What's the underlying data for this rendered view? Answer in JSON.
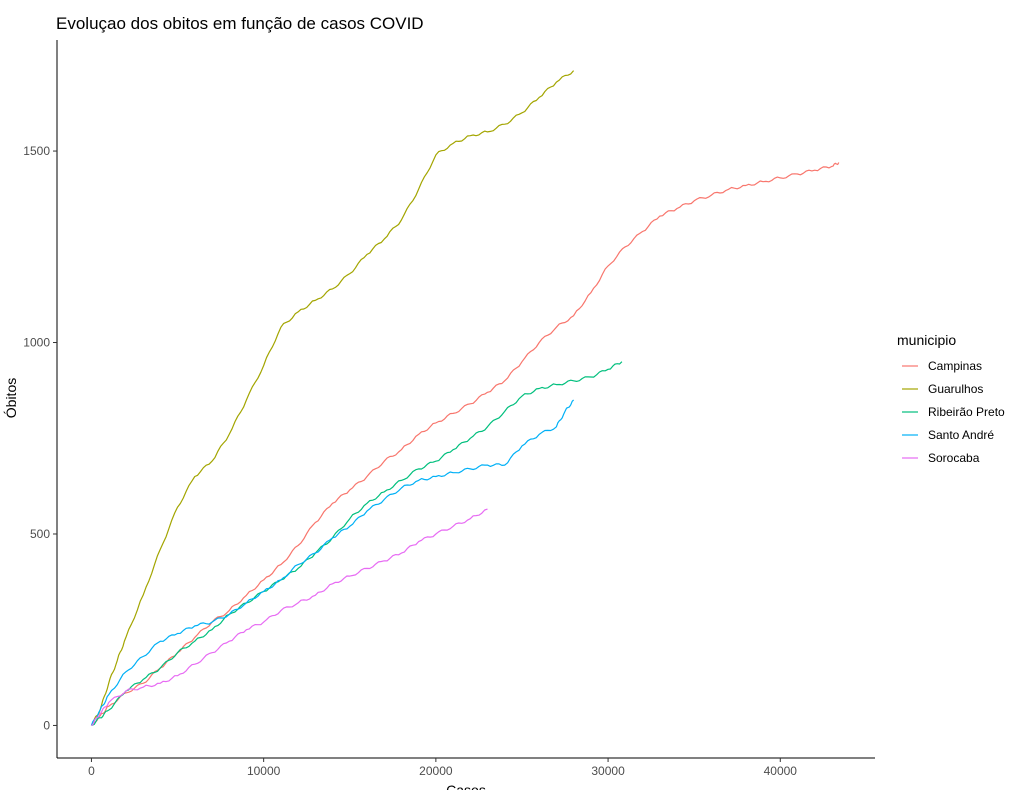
{
  "chart_data": {
    "type": "line",
    "title": "Evoluçao dos obitos em função de casos COVID",
    "xlabel": "Casos",
    "ylabel": "Óbitos",
    "xlim": [
      -2000,
      45500
    ],
    "ylim": [
      -85,
      1790
    ],
    "x_ticks": [
      0,
      10000,
      20000,
      30000,
      40000
    ],
    "y_ticks": [
      0,
      500,
      1000,
      1500
    ],
    "grid": false,
    "legend": {
      "title": "municipio",
      "position": "right"
    },
    "series": [
      {
        "name": "Campinas",
        "color": "#F8766D",
        "x": [
          0,
          500,
          1000,
          2000,
          3000,
          4000,
          5000,
          6000,
          7000,
          8000,
          9000,
          10000,
          11000,
          12000,
          13000,
          14000,
          15000,
          16000,
          17000,
          18000,
          19000,
          20000,
          21000,
          22000,
          23000,
          24000,
          25000,
          26000,
          27000,
          28000,
          29000,
          30000,
          31000,
          32000,
          33000,
          34000,
          35000,
          36000,
          37000,
          38000,
          39000,
          40000,
          41000,
          42000,
          43000,
          43400
        ],
        "y": [
          0,
          25,
          50,
          85,
          110,
          150,
          190,
          230,
          270,
          300,
          340,
          380,
          420,
          470,
          530,
          580,
          615,
          650,
          690,
          720,
          760,
          790,
          815,
          840,
          870,
          900,
          950,
          1000,
          1040,
          1070,
          1130,
          1200,
          1250,
          1290,
          1330,
          1350,
          1370,
          1385,
          1400,
          1410,
          1420,
          1430,
          1440,
          1450,
          1460,
          1470
        ]
      },
      {
        "name": "Guarulhos",
        "color": "#A3A500",
        "x": [
          0,
          500,
          1000,
          1500,
          2000,
          3000,
          4000,
          5000,
          6000,
          7000,
          8000,
          9000,
          10000,
          11000,
          12000,
          13000,
          14000,
          15000,
          16000,
          17000,
          18000,
          19000,
          20000,
          21000,
          22000,
          23000,
          24000,
          25000,
          26000,
          27000,
          28000
        ],
        "y": [
          0,
          40,
          110,
          170,
          230,
          340,
          460,
          570,
          650,
          690,
          760,
          850,
          940,
          1040,
          1080,
          1110,
          1140,
          1180,
          1230,
          1270,
          1320,
          1400,
          1490,
          1520,
          1540,
          1550,
          1570,
          1600,
          1640,
          1680,
          1710
        ]
      },
      {
        "name": "Ribeirão Preto",
        "color": "#00BF7D",
        "x": [
          0,
          500,
          1000,
          2000,
          3000,
          4000,
          5000,
          6000,
          7000,
          8000,
          9000,
          10000,
          11000,
          12000,
          13000,
          14000,
          15000,
          16000,
          17000,
          18000,
          19000,
          20000,
          21000,
          22000,
          23000,
          24000,
          25000,
          26000,
          27000,
          28000,
          29000,
          30000,
          30800
        ],
        "y": [
          0,
          20,
          40,
          90,
          120,
          150,
          190,
          220,
          250,
          290,
          320,
          350,
          380,
          410,
          450,
          490,
          540,
          580,
          610,
          640,
          670,
          690,
          720,
          750,
          780,
          820,
          860,
          880,
          890,
          900,
          910,
          930,
          950
        ]
      },
      {
        "name": "Santo André",
        "color": "#00B0F6",
        "x": [
          0,
          500,
          1000,
          2000,
          3000,
          4000,
          5000,
          6000,
          7000,
          8000,
          9000,
          10000,
          11000,
          12000,
          13000,
          14000,
          15000,
          16000,
          17000,
          18000,
          19000,
          20000,
          21000,
          22000,
          23000,
          24000,
          25000,
          26000,
          27000,
          27500,
          28000
        ],
        "y": [
          0,
          40,
          80,
          140,
          180,
          220,
          240,
          260,
          270,
          290,
          320,
          350,
          380,
          420,
          450,
          490,
          520,
          560,
          590,
          620,
          640,
          650,
          660,
          670,
          680,
          680,
          730,
          760,
          780,
          820,
          850
        ]
      },
      {
        "name": "Sorocaba",
        "color": "#E76BF3",
        "x": [
          0,
          500,
          1000,
          2000,
          3000,
          4000,
          5000,
          6000,
          7000,
          8000,
          9000,
          10000,
          11000,
          12000,
          13000,
          14000,
          15000,
          16000,
          17000,
          18000,
          19000,
          20000,
          21000,
          22000,
          23000
        ],
        "y": [
          0,
          30,
          60,
          90,
          100,
          110,
          130,
          160,
          190,
          220,
          250,
          270,
          300,
          320,
          340,
          370,
          390,
          410,
          430,
          450,
          480,
          500,
          520,
          540,
          565
        ]
      }
    ]
  }
}
